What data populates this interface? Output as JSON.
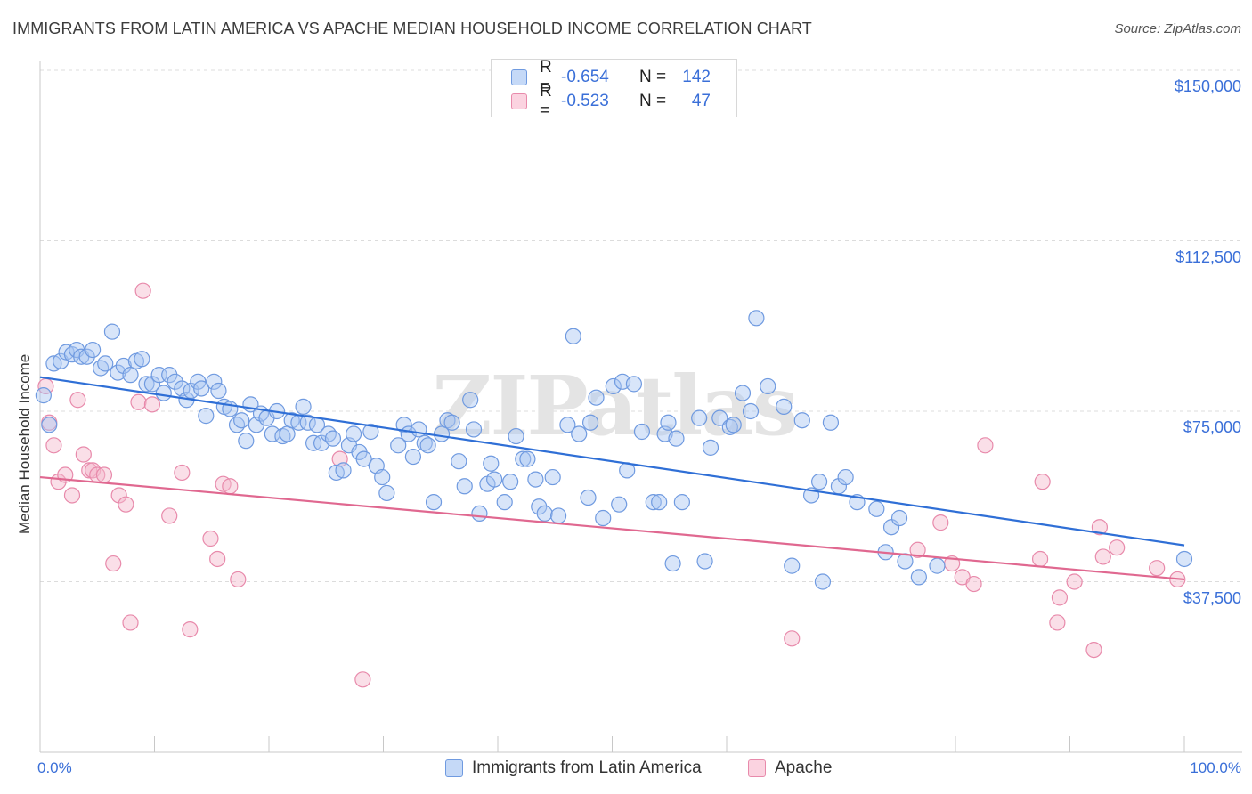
{
  "title": "IMMIGRANTS FROM LATIN AMERICA VS APACHE MEDIAN HOUSEHOLD INCOME CORRELATION CHART",
  "source": "Source: ZipAtlas.com",
  "watermark": "ZIPatlas",
  "legend": {
    "rows": [
      {
        "r_label": "R =",
        "r_value": "-0.654",
        "n_label": "N =",
        "n_value": "142",
        "color": "#a9c6f2"
      },
      {
        "r_label": "R =",
        "r_value": "-0.523",
        "n_label": "N =",
        "n_value": "47",
        "color": "#f5b8cc"
      }
    ]
  },
  "bottom_legend": [
    {
      "label": "Immigrants from Latin America",
      "color": "#a9c6f2"
    },
    {
      "label": "Apache",
      "color": "#f5b8cc"
    }
  ],
  "colors": {
    "blue_fill": "#a9c6f2",
    "blue_stroke": "#6f9ae0",
    "blue_line": "#2f6fd6",
    "pink_fill": "#f5b8cc",
    "pink_stroke": "#e88aab",
    "pink_line": "#e06890",
    "axis_text": "#3a6fd8",
    "grid": "#dcdcdc"
  },
  "chart_data": {
    "type": "scatter",
    "title": "IMMIGRANTS FROM LATIN AMERICA VS APACHE MEDIAN HOUSEHOLD INCOME CORRELATION CHART",
    "xlabel": "",
    "ylabel": "Median Household Income",
    "xlim": [
      0,
      100
    ],
    "ylim": [
      0,
      155000
    ],
    "x_tick_labels": [
      "0.0%",
      "100.0%"
    ],
    "y_ticks": [
      37500,
      75000,
      112500,
      150000
    ],
    "y_tick_labels": [
      "$37,500",
      "$75,000",
      "$112,500",
      "$150,000"
    ],
    "grid": "horizontal dashed",
    "legend_position": "top-center",
    "series": [
      {
        "name": "Immigrants from Latin America",
        "trend": {
          "x": [
            0,
            100
          ],
          "y": [
            82500,
            45500
          ]
        },
        "points": [
          [
            0.3,
            78500
          ],
          [
            0.8,
            72000
          ],
          [
            1.2,
            85500
          ],
          [
            1.8,
            86000
          ],
          [
            2.3,
            88000
          ],
          [
            2.8,
            87500
          ],
          [
            3.2,
            88500
          ],
          [
            3.6,
            87000
          ],
          [
            4.1,
            87000
          ],
          [
            4.6,
            88500
          ],
          [
            5.3,
            84500
          ],
          [
            5.7,
            85500
          ],
          [
            6.3,
            92500
          ],
          [
            6.8,
            83500
          ],
          [
            7.3,
            85000
          ],
          [
            7.9,
            83000
          ],
          [
            8.4,
            86000
          ],
          [
            8.9,
            86500
          ],
          [
            9.3,
            81000
          ],
          [
            9.8,
            81000
          ],
          [
            10.4,
            83000
          ],
          [
            10.8,
            79000
          ],
          [
            11.3,
            83000
          ],
          [
            11.8,
            81500
          ],
          [
            12.4,
            80000
          ],
          [
            12.8,
            77500
          ],
          [
            13.2,
            79500
          ],
          [
            13.8,
            81500
          ],
          [
            14.1,
            80000
          ],
          [
            14.5,
            74000
          ],
          [
            15.2,
            81500
          ],
          [
            15.6,
            79500
          ],
          [
            16.1,
            76000
          ],
          [
            16.6,
            75500
          ],
          [
            17.2,
            72000
          ],
          [
            17.6,
            73000
          ],
          [
            18.0,
            68500
          ],
          [
            18.4,
            76500
          ],
          [
            18.9,
            72000
          ],
          [
            19.3,
            74500
          ],
          [
            19.8,
            73500
          ],
          [
            20.3,
            70000
          ],
          [
            20.7,
            75000
          ],
          [
            21.2,
            69500
          ],
          [
            21.6,
            70000
          ],
          [
            22.0,
            73000
          ],
          [
            22.6,
            72500
          ],
          [
            23.0,
            76000
          ],
          [
            23.4,
            72500
          ],
          [
            23.9,
            68000
          ],
          [
            24.2,
            72000
          ],
          [
            24.6,
            68000
          ],
          [
            25.2,
            70000
          ],
          [
            25.6,
            69000
          ],
          [
            25.9,
            61500
          ],
          [
            26.5,
            62000
          ],
          [
            27.0,
            67500
          ],
          [
            27.4,
            70000
          ],
          [
            27.9,
            66000
          ],
          [
            28.3,
            64500
          ],
          [
            28.9,
            70500
          ],
          [
            29.4,
            63000
          ],
          [
            29.9,
            60500
          ],
          [
            30.3,
            57000
          ],
          [
            31.3,
            67500
          ],
          [
            31.8,
            72000
          ],
          [
            32.2,
            70000
          ],
          [
            32.6,
            65000
          ],
          [
            33.1,
            71000
          ],
          [
            33.6,
            68000
          ],
          [
            33.9,
            67500
          ],
          [
            34.4,
            55000
          ],
          [
            35.1,
            70000
          ],
          [
            35.6,
            73000
          ],
          [
            36.0,
            72500
          ],
          [
            36.6,
            64000
          ],
          [
            37.1,
            58500
          ],
          [
            37.6,
            77500
          ],
          [
            37.9,
            71000
          ],
          [
            38.4,
            52500
          ],
          [
            39.1,
            59000
          ],
          [
            39.4,
            63500
          ],
          [
            39.7,
            60000
          ],
          [
            40.6,
            55000
          ],
          [
            41.1,
            59500
          ],
          [
            41.6,
            69500
          ],
          [
            42.2,
            64500
          ],
          [
            42.6,
            64500
          ],
          [
            43.3,
            60000
          ],
          [
            43.6,
            54000
          ],
          [
            44.1,
            52500
          ],
          [
            44.8,
            60500
          ],
          [
            45.3,
            52000
          ],
          [
            46.1,
            72000
          ],
          [
            46.6,
            91500
          ],
          [
            47.1,
            70000
          ],
          [
            47.9,
            56000
          ],
          [
            48.1,
            72500
          ],
          [
            48.6,
            78000
          ],
          [
            49.2,
            51500
          ],
          [
            50.1,
            80500
          ],
          [
            50.6,
            54500
          ],
          [
            50.9,
            81500
          ],
          [
            51.3,
            62000
          ],
          [
            51.9,
            81000
          ],
          [
            52.6,
            70500
          ],
          [
            53.6,
            55000
          ],
          [
            54.1,
            55000
          ],
          [
            54.6,
            70000
          ],
          [
            54.9,
            72500
          ],
          [
            55.3,
            41500
          ],
          [
            55.6,
            69000
          ],
          [
            56.1,
            55000
          ],
          [
            57.6,
            73500
          ],
          [
            58.1,
            42000
          ],
          [
            58.6,
            67000
          ],
          [
            59.4,
            73500
          ],
          [
            60.3,
            71500
          ],
          [
            60.6,
            72000
          ],
          [
            61.4,
            79000
          ],
          [
            62.1,
            75000
          ],
          [
            62.6,
            95500
          ],
          [
            63.6,
            80500
          ],
          [
            65.0,
            76000
          ],
          [
            65.7,
            41000
          ],
          [
            66.6,
            73000
          ],
          [
            67.4,
            56500
          ],
          [
            68.1,
            59500
          ],
          [
            68.4,
            37500
          ],
          [
            69.1,
            72500
          ],
          [
            69.8,
            58500
          ],
          [
            70.4,
            60500
          ],
          [
            71.4,
            55000
          ],
          [
            73.1,
            53500
          ],
          [
            73.9,
            44000
          ],
          [
            74.4,
            49500
          ],
          [
            75.1,
            51500
          ],
          [
            75.6,
            42000
          ],
          [
            76.8,
            38500
          ],
          [
            78.4,
            41000
          ],
          [
            100.0,
            42500
          ]
        ]
      },
      {
        "name": "Apache",
        "trend": {
          "x": [
            0,
            100
          ],
          "y": [
            60500,
            38000
          ]
        },
        "points": [
          [
            0.5,
            80500
          ],
          [
            0.8,
            72500
          ],
          [
            1.2,
            67500
          ],
          [
            1.6,
            59500
          ],
          [
            2.2,
            61000
          ],
          [
            2.8,
            56500
          ],
          [
            3.3,
            77500
          ],
          [
            3.8,
            65500
          ],
          [
            4.3,
            62000
          ],
          [
            4.6,
            62000
          ],
          [
            5.0,
            61000
          ],
          [
            5.6,
            61000
          ],
          [
            6.4,
            41500
          ],
          [
            6.9,
            56500
          ],
          [
            7.5,
            54500
          ],
          [
            7.9,
            28500
          ],
          [
            8.6,
            77000
          ],
          [
            9.0,
            101500
          ],
          [
            9.8,
            76500
          ],
          [
            11.3,
            52000
          ],
          [
            12.4,
            61500
          ],
          [
            13.1,
            27000
          ],
          [
            14.9,
            47000
          ],
          [
            15.5,
            42500
          ],
          [
            16.0,
            59000
          ],
          [
            16.6,
            58500
          ],
          [
            17.3,
            38000
          ],
          [
            26.2,
            64500
          ],
          [
            28.2,
            16000
          ],
          [
            65.7,
            25000
          ],
          [
            76.7,
            44500
          ],
          [
            78.7,
            50500
          ],
          [
            79.7,
            41500
          ],
          [
            80.6,
            38500
          ],
          [
            81.6,
            37000
          ],
          [
            82.6,
            67500
          ],
          [
            87.4,
            42500
          ],
          [
            87.6,
            59500
          ],
          [
            88.9,
            28500
          ],
          [
            89.1,
            34000
          ],
          [
            90.4,
            37500
          ],
          [
            92.1,
            22500
          ],
          [
            92.6,
            49500
          ],
          [
            92.9,
            43000
          ],
          [
            94.1,
            45000
          ],
          [
            97.6,
            40500
          ],
          [
            99.4,
            38000
          ]
        ]
      }
    ]
  }
}
